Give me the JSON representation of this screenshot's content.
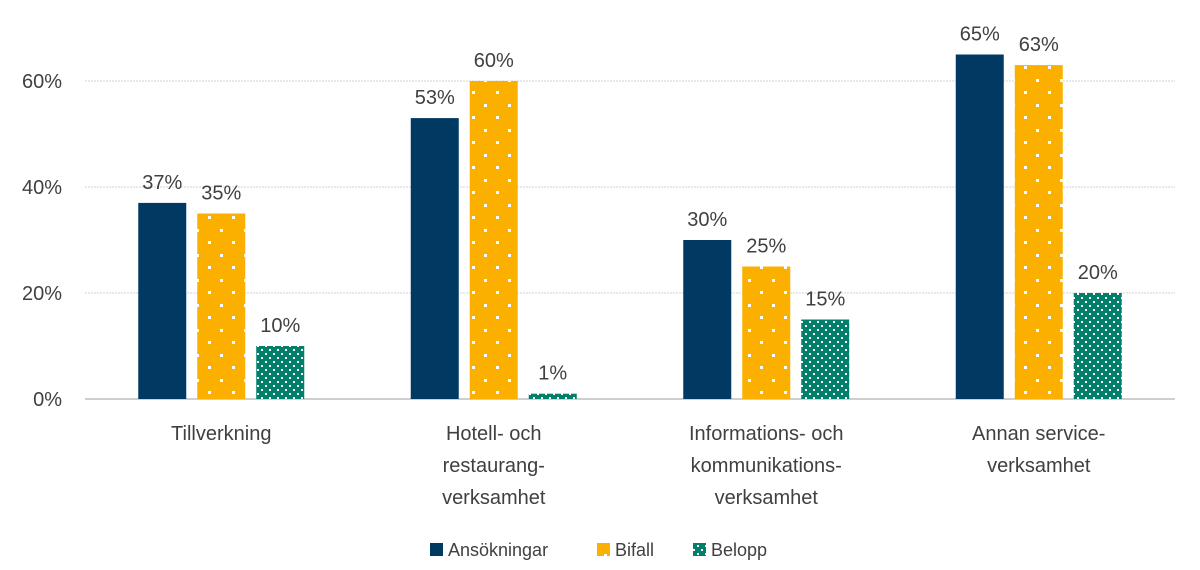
{
  "chart_data": {
    "type": "bar",
    "title": "",
    "xlabel": "",
    "ylabel": "",
    "ylim": [
      0,
      60
    ],
    "yticks": [
      "0%",
      "20%",
      "40%",
      "60%"
    ],
    "ytick_values": [
      0,
      20,
      40,
      60
    ],
    "grid": true,
    "legend_position": "bottom",
    "categories": [
      [
        "Tillverkning"
      ],
      [
        "Hotell- och",
        "restaurang-",
        "verksamhet"
      ],
      [
        "Informations- och",
        "kommunikations-",
        "verksamhet"
      ],
      [
        "Annan service-",
        "verksamhet"
      ]
    ],
    "series": [
      {
        "name": "Ansökningar",
        "color": "#003A63",
        "pattern": "solid",
        "values": [
          37,
          53,
          30,
          65
        ],
        "labels": [
          "37%",
          "53%",
          "30%",
          "65%"
        ]
      },
      {
        "name": "Bifall",
        "color": "#FBB000",
        "pattern": "sparse-dots",
        "values": [
          35,
          60,
          25,
          63
        ],
        "labels": [
          "35%",
          "60%",
          "25%",
          "63%"
        ]
      },
      {
        "name": "Belopp",
        "color": "#00806A",
        "pattern": "dense-dots",
        "values": [
          10,
          1,
          15,
          20
        ],
        "labels": [
          "10%",
          "1%",
          "15%",
          "20%"
        ]
      }
    ]
  }
}
